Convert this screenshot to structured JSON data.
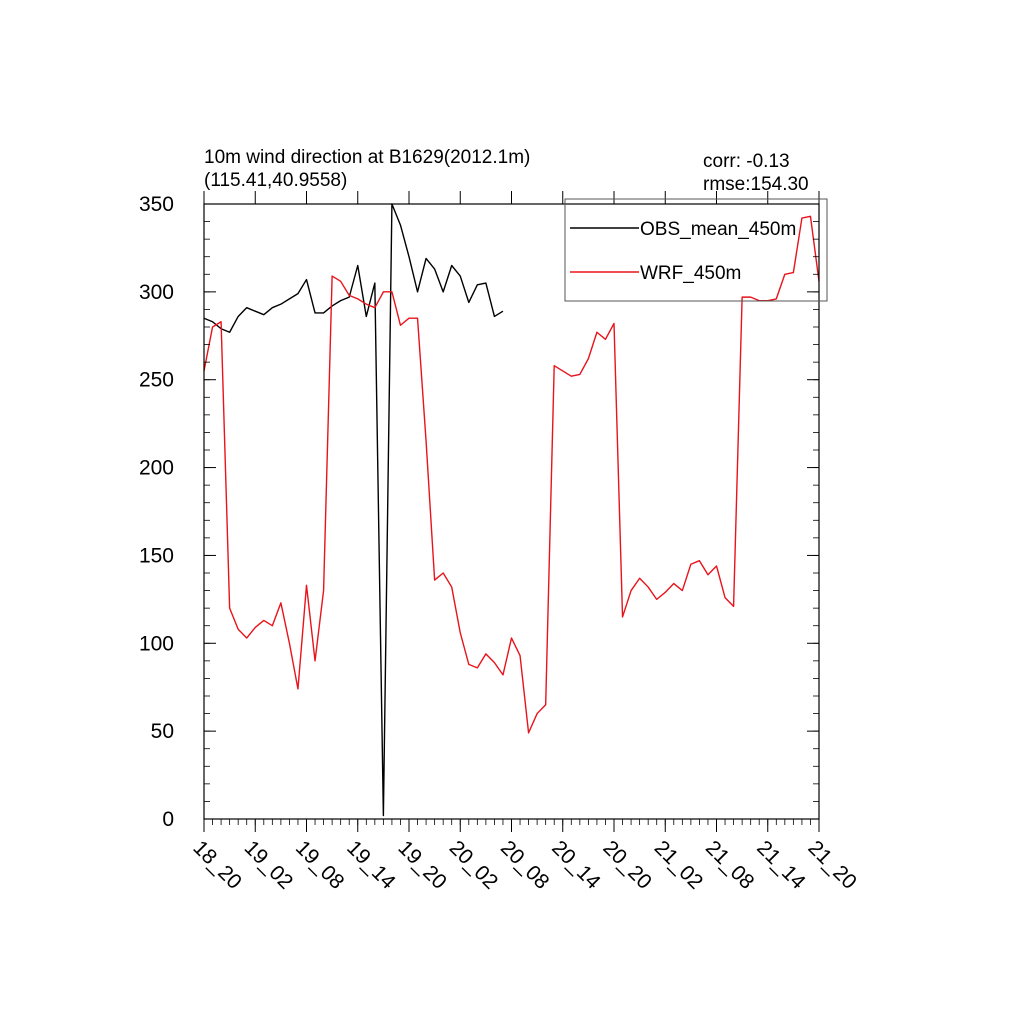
{
  "chart_data": {
    "type": "line",
    "title_lines": [
      "10m wind direction at B1629(2012.1m)",
      "(115.41,40.9558)"
    ],
    "stats_lines": [
      "corr: -0.13",
      "rmse:154.30"
    ],
    "xlabel": "",
    "ylabel": "",
    "ylim": [
      0,
      350
    ],
    "yticks": [
      0,
      50,
      100,
      150,
      200,
      250,
      300,
      350
    ],
    "xlim": [
      0,
      72
    ],
    "xtick_positions": [
      0,
      6,
      12,
      18,
      24,
      30,
      36,
      42,
      48,
      54,
      60,
      66,
      72
    ],
    "xtick_labels": [
      "18_20",
      "19_02",
      "19_08",
      "19_14",
      "19_20",
      "20_02",
      "20_08",
      "20_14",
      "20_20",
      "21_02",
      "21_08",
      "21_14",
      "21_20"
    ],
    "legend_position": "top-right",
    "grid": false,
    "series": [
      {
        "name": "OBS_mean_450m",
        "color": "#000000",
        "x": [
          0,
          1,
          2,
          3,
          4,
          5,
          6,
          7,
          8,
          9,
          10,
          11,
          12,
          13,
          14,
          15,
          16,
          17,
          18,
          19,
          20,
          21,
          22,
          23,
          24,
          25,
          26,
          27,
          28,
          29,
          30,
          31,
          32,
          33,
          34,
          35
        ],
        "values": [
          285,
          283,
          279,
          277,
          286,
          291,
          289,
          287,
          291,
          293,
          296,
          299,
          307,
          288,
          288,
          292,
          295,
          297,
          315,
          286,
          305,
          2,
          350,
          338,
          320,
          300,
          319,
          313,
          300,
          315,
          309,
          294,
          304,
          305,
          286,
          289
        ]
      },
      {
        "name": "WRF_450m",
        "color": "#e8131b",
        "x": [
          0,
          1,
          2,
          3,
          4,
          5,
          6,
          7,
          8,
          9,
          10,
          11,
          12,
          13,
          14,
          15,
          16,
          17,
          18,
          19,
          20,
          21,
          22,
          23,
          24,
          25,
          26,
          27,
          28,
          29,
          30,
          31,
          32,
          33,
          34,
          35,
          36,
          37,
          38,
          39,
          40,
          41,
          42,
          43,
          44,
          45,
          46,
          47,
          48,
          49,
          50,
          51,
          52,
          53,
          54,
          55,
          56,
          57,
          58,
          59,
          60,
          61,
          62,
          63,
          64,
          65,
          66,
          67,
          68,
          69,
          70,
          71,
          72
        ],
        "values": [
          255,
          280,
          283,
          120,
          108,
          103,
          109,
          113,
          110,
          123,
          100,
          74,
          133,
          90,
          130,
          309,
          306,
          298,
          296,
          293,
          291,
          300,
          300,
          281,
          285,
          285,
          215,
          136,
          140,
          132,
          106,
          88,
          86,
          94,
          89,
          82,
          103,
          93,
          49,
          60,
          65,
          258,
          255,
          252,
          253,
          262,
          277,
          273,
          282,
          115,
          130,
          137,
          132,
          125,
          129,
          134,
          130,
          145,
          147,
          139,
          144,
          126,
          121,
          297,
          297,
          295,
          295,
          296,
          310,
          311,
          342,
          343,
          306
        ]
      }
    ]
  }
}
